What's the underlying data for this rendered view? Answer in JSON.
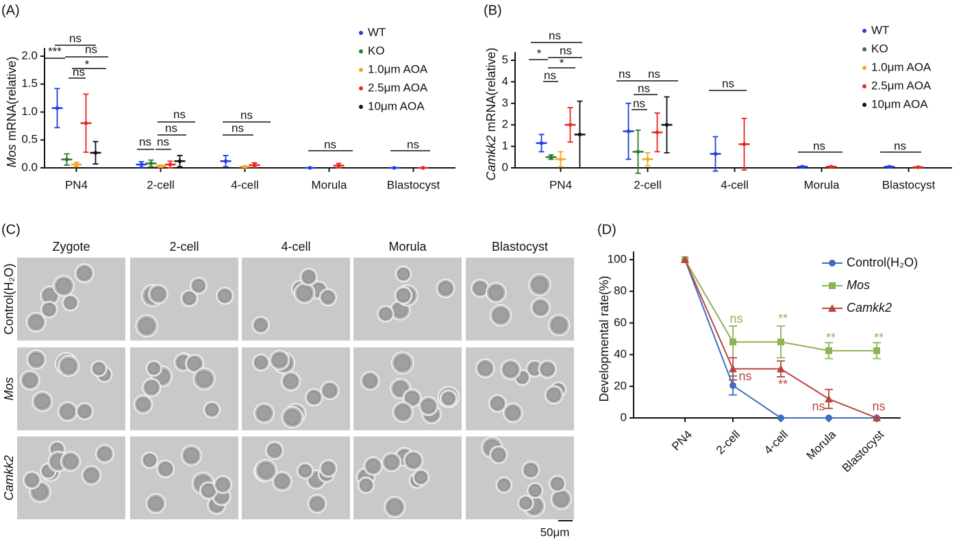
{
  "chart_data": [
    {
      "type": "dot",
      "panel_label": "(A)",
      "y_label_gene": "Mos",
      "y_label": "mRNA(relative)",
      "categories": [
        "PN4",
        "2-cell",
        "4-cell",
        "Morula",
        "Blastocyst"
      ],
      "ylim": [
        0,
        2.0
      ],
      "yticks": [
        {
          "value": 0,
          "label": "0.0"
        },
        0.5,
        {
          "value": 1,
          "label": "1.0"
        },
        1.5,
        {
          "value": 2,
          "label": "2.0"
        }
      ],
      "series": [
        {
          "name": "WT",
          "color": "#1f3fe0",
          "values": [
            1.07,
            0.06,
            0.12,
            0.0,
            0.0
          ],
          "errors": [
            0.35,
            0.05,
            0.1,
            0.0,
            0.0
          ]
        },
        {
          "name": "KO",
          "color": "#2a7a2a",
          "values": [
            0.15,
            0.08,
            null,
            null,
            null
          ],
          "errors": [
            0.1,
            0.06,
            null,
            null,
            null
          ]
        },
        {
          "name": "1.0μm AOA",
          "color": "#f5a623",
          "values": [
            0.06,
            0.03,
            0.02,
            null,
            null
          ],
          "errors": [
            0.04,
            0.02,
            0.01,
            null,
            null
          ]
        },
        {
          "name": "2.5μm AOA",
          "color": "#e8271e",
          "values": [
            0.8,
            0.06,
            0.05,
            0.04,
            0.0
          ],
          "errors": [
            0.52,
            0.06,
            0.04,
            0.04,
            0.0
          ]
        },
        {
          "name": "10μm AOA",
          "color": "#111111",
          "values": [
            0.27,
            0.12,
            null,
            null,
            null
          ],
          "errors": [
            0.2,
            0.1,
            null,
            null,
            null
          ]
        }
      ],
      "annotations": [
        {
          "text": "ns"
        },
        {
          "text": "***"
        },
        {
          "text": "ns"
        },
        {
          "text": "ns"
        },
        {
          "text": "*"
        },
        {
          "text": "ns"
        },
        {
          "text": "ns"
        },
        {
          "text": "ns"
        },
        {
          "text": "ns"
        },
        {
          "text": "ns"
        },
        {
          "text": "ns"
        },
        {
          "text": "ns"
        },
        {
          "text": "ns"
        }
      ]
    },
    {
      "type": "dot",
      "panel_label": "(B)",
      "y_label_gene": "Camkk2",
      "y_label": "mRNA(relative)",
      "categories": [
        "PN4",
        "2-cell",
        "4-cell",
        "Morula",
        "Blastocyst"
      ],
      "ylim": [
        0,
        5
      ],
      "yticks": [
        0,
        1,
        2,
        3,
        4,
        5
      ],
      "series": [
        {
          "name": "WT",
          "color": "#1f3fe0",
          "values": [
            1.15,
            1.7,
            0.65,
            0.05,
            0.05
          ],
          "errors": [
            0.4,
            1.3,
            0.8,
            0.03,
            0.03
          ]
        },
        {
          "name": "KO",
          "color": "#2a7a2a",
          "values": [
            0.5,
            0.75,
            null,
            null,
            null
          ],
          "errors": [
            0.1,
            1.0,
            null,
            null,
            null
          ]
        },
        {
          "name": "1.0μm AOA",
          "color": "#f5a623",
          "values": [
            0.4,
            0.4,
            null,
            null,
            null
          ],
          "errors": [
            0.35,
            0.3,
            null,
            null,
            null
          ]
        },
        {
          "name": "2.5μm AOA",
          "color": "#e8271e",
          "values": [
            2.0,
            1.65,
            1.1,
            0.05,
            0.03
          ],
          "errors": [
            0.8,
            0.9,
            1.2,
            0.03,
            0.02
          ]
        },
        {
          "name": "10μm AOA",
          "color": "#111111",
          "values": [
            1.55,
            2.0,
            null,
            null,
            null
          ],
          "errors": [
            1.55,
            1.3,
            null,
            null,
            null
          ]
        }
      ],
      "annotations": [
        {
          "text": "ns"
        },
        {
          "text": "*"
        },
        {
          "text": "ns"
        },
        {
          "text": "ns"
        },
        {
          "text": "*"
        },
        {
          "text": "ns"
        },
        {
          "text": "ns"
        },
        {
          "text": "ns"
        },
        {
          "text": "ns"
        },
        {
          "text": "ns"
        },
        {
          "text": "ns"
        },
        {
          "text": "ns"
        }
      ]
    },
    {
      "type": "line",
      "panel_label": "(D)",
      "y_label": "Developmental rate(%)",
      "categories": [
        "PN4",
        "2-cell",
        "4-cell",
        "Morula",
        "Blastocyst"
      ],
      "ylim": [
        0,
        100
      ],
      "yticks": [
        0,
        20,
        40,
        60,
        80,
        100
      ],
      "series": [
        {
          "name": "Control(H₂O)",
          "color": "#3a6fbf",
          "marker": "circle",
          "values": [
            100,
            20.5,
            0,
            0,
            0
          ],
          "errors": [
            0,
            6,
            0,
            0,
            0
          ]
        },
        {
          "name": "Mos",
          "color": "#8db356",
          "marker": "square",
          "italic": true,
          "values": [
            100,
            48,
            48,
            42.5,
            42.5
          ],
          "errors": [
            0,
            10,
            10,
            5,
            5
          ]
        },
        {
          "name": "Camkk2",
          "color": "#b5463c",
          "marker": "triangle",
          "italic": true,
          "values": [
            100,
            31,
            31,
            12,
            0
          ],
          "errors": [
            0,
            7,
            5,
            6,
            0
          ]
        }
      ],
      "annotations": [
        {
          "text": "ns",
          "color": "#8db356"
        },
        {
          "text": "**",
          "color": "#8db356"
        },
        {
          "text": "**",
          "color": "#8db356"
        },
        {
          "text": "**",
          "color": "#8db356"
        },
        {
          "text": "ns",
          "color": "#b5463c"
        },
        {
          "text": "**",
          "color": "#b5463c"
        },
        {
          "text": "ns",
          "color": "#b5463c"
        },
        {
          "text": "ns",
          "color": "#b5463c"
        }
      ]
    }
  ],
  "micrographs": {
    "panel_label": "(C)",
    "columns": [
      "Zygote",
      "2-cell",
      "4-cell",
      "Morula",
      "Blastocyst"
    ],
    "rows": [
      "Control(H₂O)",
      "Mos",
      "Camkk2"
    ],
    "scale_bar": "50μm"
  }
}
